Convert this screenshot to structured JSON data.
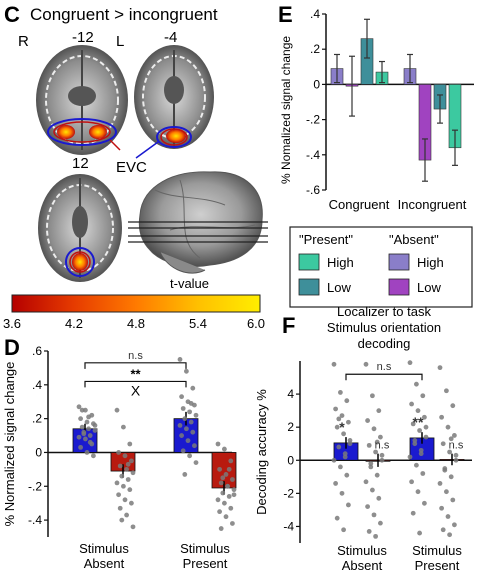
{
  "panels": {
    "C": {
      "letter": "C",
      "title": "Congruent > incongruent",
      "hemi_left": "R",
      "hemi_right": "L",
      "slices": [
        "-12",
        "-4",
        "12"
      ],
      "roi_label": "EVC",
      "colorbar": {
        "label": "t-value",
        "ticks": [
          "3.6",
          "4.2",
          "4.8",
          "5.4",
          "6.0"
        ],
        "range": [
          3.6,
          6.0
        ],
        "colors": [
          "#b50000",
          "#e63b00",
          "#ff7a00",
          "#ffc000",
          "#ffee00"
        ]
      }
    },
    "D": {
      "letter": "D"
    },
    "E": {
      "letter": "E",
      "legend": {
        "present_title": "\"Present\"",
        "absent_title": "\"Absent\"",
        "items": [
          {
            "label": "High",
            "color": "#3cc9a0"
          },
          {
            "label": "Low",
            "color": "#3e8f9a"
          },
          {
            "label": "High",
            "color": "#8a7ec9"
          },
          {
            "label": "Low",
            "color": "#a043c0"
          }
        ]
      }
    },
    "F": {
      "letter": "F",
      "title_lines": [
        "Localizer to task",
        "Stimulus orientation",
        "decoding"
      ]
    }
  },
  "chart_data": [
    {
      "panel": "D",
      "type": "bar",
      "ylabel": "% Normalized signal change",
      "ylim": [
        -0.5,
        0.6
      ],
      "yticks": [
        -0.4,
        -0.2,
        0,
        0.2,
        0.4,
        0.6
      ],
      "ytick_labels": [
        "-.4",
        "-.2",
        "0",
        ".2",
        ".4",
        ".6"
      ],
      "groups": [
        "Stimulus Absent",
        "Stimulus Present"
      ],
      "group_label_lines": [
        [
          "Stimulus",
          "Absent"
        ],
        [
          "Stimulus",
          "Present"
        ]
      ],
      "bars": [
        {
          "group": 0,
          "value": 0.14,
          "err": 0.03,
          "color": "#1a1acf"
        },
        {
          "group": 0,
          "value": -0.11,
          "err": 0.04,
          "color": "#b81a0f"
        },
        {
          "group": 1,
          "value": 0.2,
          "err": 0.04,
          "color": "#1a1acf"
        },
        {
          "group": 1,
          "value": -0.21,
          "err": 0.04,
          "color": "#b81a0f"
        }
      ],
      "points": [
        [
          0.27,
          0.25,
          0.22,
          0.2,
          0.18,
          0.17,
          0.15,
          0.14,
          0.13,
          0.12,
          0.1,
          0.09,
          0.08,
          0.05,
          0.03,
          0.0,
          -0.02,
          0.25,
          0.21,
          0.16,
          0.11,
          0.06
        ],
        [
          0.25,
          0.15,
          0.05,
          0.0,
          -0.02,
          -0.05,
          -0.08,
          -0.1,
          -0.12,
          -0.14,
          -0.16,
          -0.18,
          -0.2,
          -0.22,
          -0.25,
          -0.28,
          -0.3,
          -0.33,
          -0.37,
          -0.44,
          -0.4,
          -0.07
        ],
        [
          0.55,
          0.48,
          0.38,
          0.33,
          0.3,
          0.28,
          0.26,
          0.24,
          0.22,
          0.2,
          0.18,
          0.16,
          0.14,
          0.12,
          0.1,
          0.07,
          0.04,
          0.01,
          -0.02,
          -0.06,
          -0.13,
          0.29
        ],
        [
          0.05,
          0.02,
          -0.05,
          -0.1,
          -0.13,
          -0.16,
          -0.18,
          -0.2,
          -0.22,
          -0.24,
          -0.26,
          -0.28,
          -0.3,
          -0.33,
          -0.35,
          -0.38,
          -0.42,
          -0.45,
          -0.2,
          -0.25,
          -0.15,
          -0.1
        ]
      ],
      "annotations": {
        "top_bracket": "n.s",
        "inner_stars": "**",
        "inner_cross": "X"
      }
    },
    {
      "panel": "E",
      "type": "bar",
      "ylabel": "% Nomalized signal change",
      "ylim": [
        -0.6,
        0.4
      ],
      "yticks": [
        -0.6,
        -0.4,
        -0.2,
        0,
        0.2,
        0.4
      ],
      "ytick_labels": [
        "-.6",
        "-.4",
        "-.2",
        "0",
        ".2",
        ".4"
      ],
      "categories": [
        "Congruent",
        "Incongruent"
      ],
      "series": [
        {
          "name": "Absent High",
          "values": [
            0.09,
            0.09
          ],
          "err": [
            0.08,
            0.08
          ],
          "color": "#8a7ec9"
        },
        {
          "name": "Absent Low",
          "values": [
            -0.01,
            -0.43
          ],
          "err": [
            0.17,
            0.12
          ],
          "color": "#a043c0"
        },
        {
          "name": "Present Low",
          "values": [
            0.26,
            -0.14
          ],
          "err": [
            0.11,
            0.08
          ],
          "color": "#3e8f9a"
        },
        {
          "name": "Present High",
          "values": [
            0.07,
            -0.36
          ],
          "err": [
            0.06,
            0.1
          ],
          "color": "#3cc9a0"
        }
      ]
    },
    {
      "panel": "F",
      "type": "bar",
      "ylabel": "Decoding accuracy %",
      "ylim": [
        -5,
        6
      ],
      "yticks": [
        -4,
        -2,
        0,
        2,
        4
      ],
      "ytick_labels": [
        "-4",
        "-2",
        "0",
        "2",
        "4"
      ],
      "groups": [
        "Stimulus Absent",
        "Stimulus Present"
      ],
      "group_label_lines": [
        [
          "Stimulus",
          "Absent"
        ],
        [
          "Stimulus",
          "Present"
        ]
      ],
      "bars": [
        {
          "group": 0,
          "value": 1.05,
          "err": 0.35,
          "color": "#1a1acf",
          "label": "*"
        },
        {
          "group": 0,
          "value": 0.0,
          "err": 0.4,
          "color": "#b81a0f",
          "label": "n.s"
        },
        {
          "group": 1,
          "value": 1.35,
          "err": 0.35,
          "color": "#1a1acf",
          "label": "**"
        },
        {
          "group": 1,
          "value": 0.05,
          "err": 0.35,
          "color": "#b81a0f",
          "label": "n.s"
        }
      ],
      "points": [
        [
          5.8,
          4.1,
          3.6,
          3.1,
          2.7,
          2.3,
          2.0,
          1.6,
          1.2,
          0.8,
          0.4,
          0.0,
          -0.4,
          -0.9,
          -1.4,
          -2.0,
          -2.7,
          -3.5,
          -4.2,
          1.0,
          2.5,
          0.2
        ],
        [
          5.8,
          3.9,
          3.0,
          2.4,
          1.9,
          1.4,
          0.9,
          0.5,
          0.0,
          -0.4,
          -0.9,
          -1.3,
          -1.8,
          -2.3,
          -2.8,
          -3.3,
          -3.8,
          -4.3,
          -4.6,
          0.3,
          -0.2,
          1.1
        ],
        [
          5.9,
          4.6,
          3.9,
          3.4,
          3.0,
          2.6,
          2.2,
          1.8,
          1.4,
          1.0,
          0.6,
          0.2,
          -0.3,
          -0.8,
          -1.3,
          -1.9,
          -2.6,
          -3.2,
          -4.4,
          2.0,
          1.2,
          0.4
        ],
        [
          5.6,
          4.2,
          3.3,
          2.6,
          2.0,
          1.5,
          1.0,
          0.5,
          0.0,
          -0.5,
          -1.0,
          -1.4,
          -1.9,
          -2.4,
          -2.9,
          -3.4,
          -3.9,
          -4.2,
          -4.5,
          0.3,
          -0.6,
          1.3
        ]
      ],
      "annotations": {
        "top_bracket": "n.s"
      }
    }
  ]
}
